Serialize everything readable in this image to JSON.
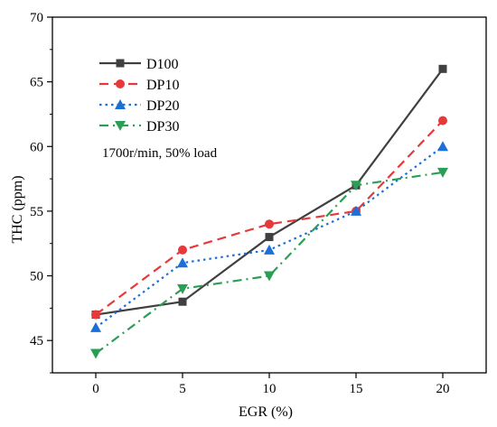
{
  "chart_data": {
    "type": "line",
    "xlabel": "EGR (%)",
    "ylabel": "THC (ppm)",
    "x": [
      0,
      5,
      10,
      15,
      20
    ],
    "xticks": [
      "0",
      "5",
      "10",
      "15",
      "20"
    ],
    "xlim": [
      -2.5,
      22.5
    ],
    "ylim": [
      42.5,
      70
    ],
    "yticks": [
      "45",
      "50",
      "55",
      "60",
      "65",
      "70"
    ],
    "legend_position": "top-left",
    "annotation": "1700r/min, 50% load",
    "series": [
      {
        "name": "D100",
        "values": [
          47,
          48,
          53,
          57,
          66
        ],
        "color": "#404040",
        "dash": "solid",
        "marker": "square"
      },
      {
        "name": "DP10",
        "values": [
          47,
          52,
          54,
          55,
          62
        ],
        "color": "#e8393a",
        "dash": "dash",
        "marker": "circle"
      },
      {
        "name": "DP20",
        "values": [
          46,
          51,
          52,
          55,
          60
        ],
        "color": "#1a6fd8",
        "dash": "dot",
        "marker": "triangle-up"
      },
      {
        "name": "DP30",
        "values": [
          44,
          49,
          50,
          57,
          58
        ],
        "color": "#2a9e55",
        "dash": "dashdot",
        "marker": "triangle-down"
      }
    ]
  }
}
